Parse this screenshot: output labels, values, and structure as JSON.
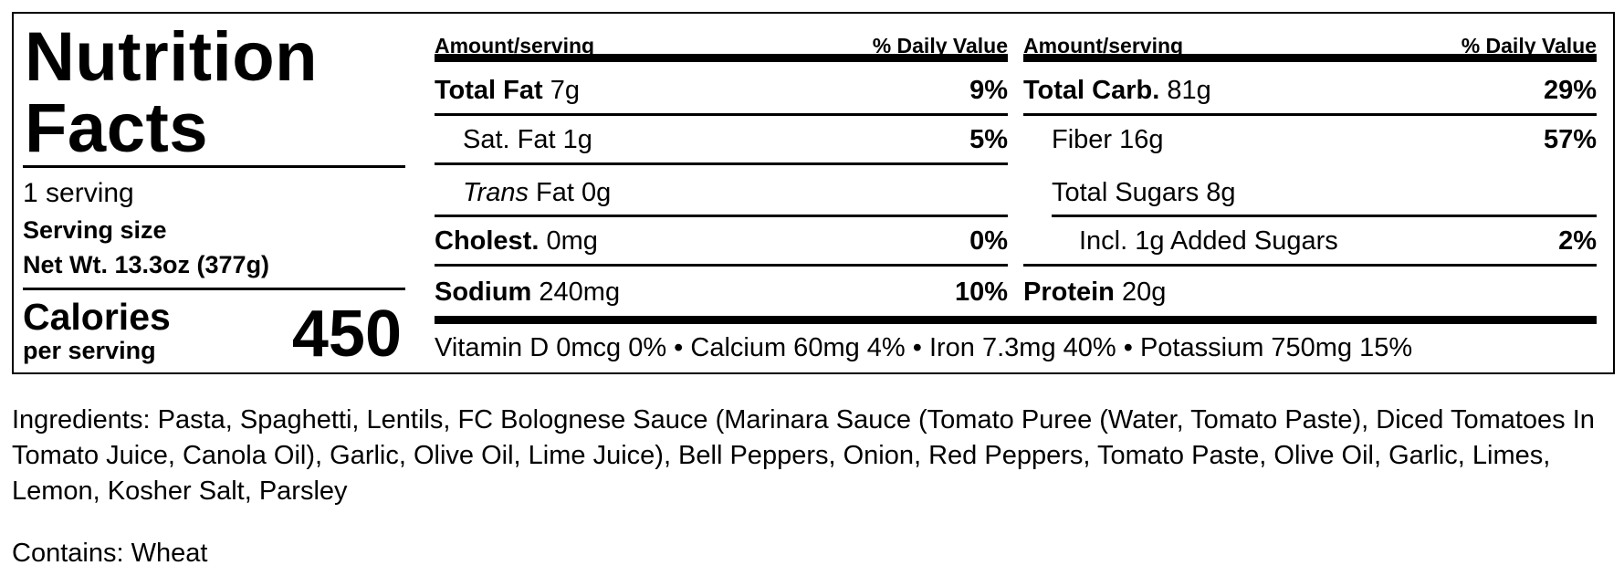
{
  "title_line1": "Nutrition",
  "title_line2": "Facts",
  "servings": "1 serving",
  "serving_size_label": "Serving size",
  "serving_size_value": "Net Wt. 13.3oz (377g)",
  "calories_label": "Calories",
  "calories_sub": "per serving",
  "calories_value": "450",
  "header": {
    "amount": "Amount/serving",
    "dv": "% Daily Value"
  },
  "left_rows": [
    {
      "name": "Total Fat",
      "amount": "7g",
      "dv": "9%"
    },
    {
      "name": "Sat. Fat",
      "amount": "1g",
      "dv": "5%"
    },
    {
      "name": "Trans",
      "name_rest": "Fat",
      "amount": "0g",
      "dv": ""
    },
    {
      "name": "Cholest.",
      "amount": "0mg",
      "dv": "0%"
    },
    {
      "name": "Sodium",
      "amount": "240mg",
      "dv": "10%"
    }
  ],
  "right_rows": [
    {
      "name": "Total Carb.",
      "amount": "81g",
      "dv": "29%"
    },
    {
      "name": "Fiber",
      "amount": "16g",
      "dv": "57%"
    },
    {
      "name": "Total Sugars",
      "amount": "8g",
      "dv": ""
    },
    {
      "name": "Incl. 1g Added Sugars",
      "amount": "",
      "dv": "2%"
    },
    {
      "name": "Protein",
      "amount": "20g",
      "dv": ""
    }
  ],
  "vitamins": "Vitamin D 0mcg 0% • Calcium 60mg 4% • Iron 7.3mg 40% • Potassium 750mg 15%",
  "ingredients": "Ingredients: Pasta, Spaghetti, Lentils, FC Bolognese Sauce (Marinara Sauce (Tomato Puree (Water, Tomato Paste), Diced Tomatoes In Tomato Juice, Canola Oil), Garlic, Olive Oil, Lime Juice), Bell Peppers, Onion, Red Peppers, Tomato Paste, Olive Oil, Garlic, Limes, Lemon, Kosher Salt, Parsley",
  "contains": "Contains: Wheat"
}
